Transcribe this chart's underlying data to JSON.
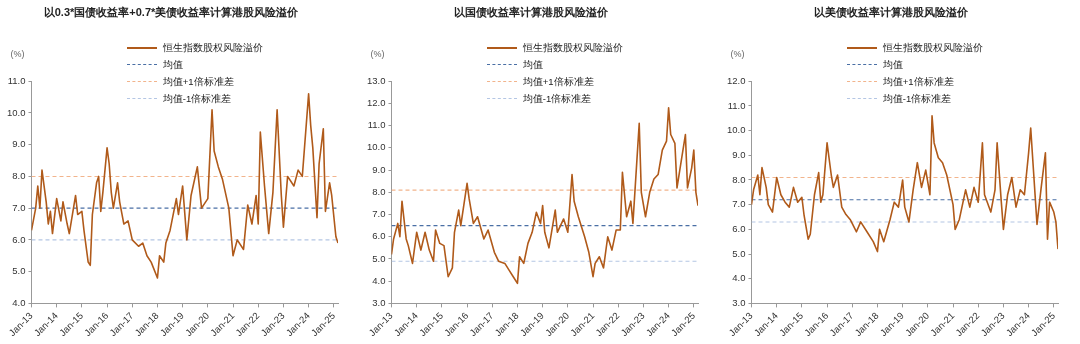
{
  "chart_data": [
    {
      "type": "line",
      "title": "以0.3*国债收益率+0.7*美债收益率计算港股风险溢价",
      "ylabel": "(%)",
      "legend": "top",
      "grid": false,
      "marker": "none",
      "xlim": [
        "2013-01",
        "2025-03"
      ],
      "xticks": [
        {
          "value": "2013-01",
          "label": "Jan-13"
        },
        {
          "value": "2014-01",
          "label": "Jan-14"
        },
        {
          "value": "2015-01",
          "label": "Jan-15"
        },
        {
          "value": "2016-01",
          "label": "Jan-16"
        },
        {
          "value": "2017-01",
          "label": "Jan-17"
        },
        {
          "value": "2018-01",
          "label": "Jan-18"
        },
        {
          "value": "2019-01",
          "label": "Jan-19"
        },
        {
          "value": "2020-01",
          "label": "Jan-20"
        },
        {
          "value": "2021-01",
          "label": "Jan-21"
        },
        {
          "value": "2022-01",
          "label": "Jan-22"
        },
        {
          "value": "2023-01",
          "label": "Jan-23"
        },
        {
          "value": "2024-01",
          "label": "Jan-24"
        },
        {
          "value": "2025-01",
          "label": "Jan-25"
        }
      ],
      "ylim": [
        4,
        11
      ],
      "yticks": [
        {
          "value": 4,
          "label": "4.0"
        },
        {
          "value": 5,
          "label": "5.0"
        },
        {
          "value": 6,
          "label": "6.0"
        },
        {
          "value": 7,
          "label": "7.0"
        },
        {
          "value": 8,
          "label": "8.0"
        },
        {
          "value": 9,
          "label": "9.0"
        },
        {
          "value": 10,
          "label": "10.0"
        },
        {
          "value": 11,
          "label": "11.0"
        }
      ],
      "ref_lines": [
        {
          "axis": "y",
          "value": 7.0,
          "label": "均值",
          "color": "#4a6fa5",
          "line_style": "dashed"
        },
        {
          "axis": "y",
          "value": 8.0,
          "label": "均值+1倍标准差",
          "color": "#f2b48c",
          "line_style": "dashed"
        },
        {
          "axis": "y",
          "value": 6.0,
          "label": "均值-1倍标准差",
          "color": "#b4c6e4",
          "line_style": "dashed"
        }
      ],
      "series": [
        {
          "name": "恒生指数股权风险溢价",
          "color": "#b05a1a",
          "x": [
            "2013-01",
            "2013-03",
            "2013-04",
            "2013-05",
            "2013-06",
            "2013-08",
            "2013-09",
            "2013-10",
            "2013-11",
            "2014-01",
            "2014-03",
            "2014-04",
            "2014-06",
            "2014-07",
            "2014-10",
            "2014-11",
            "2015-01",
            "2015-02",
            "2015-04",
            "2015-05",
            "2015-06",
            "2015-08",
            "2015-09",
            "2015-10",
            "2015-11",
            "2016-01",
            "2016-02",
            "2016-03",
            "2016-04",
            "2016-06",
            "2016-07",
            "2016-09",
            "2016-11",
            "2017-01",
            "2017-04",
            "2017-06",
            "2017-08",
            "2017-10",
            "2018-01",
            "2018-02",
            "2018-04",
            "2018-05",
            "2018-07",
            "2018-10",
            "2018-11",
            "2019-01",
            "2019-03",
            "2019-05",
            "2019-08",
            "2019-10",
            "2020-01",
            "2020-03",
            "2020-04",
            "2020-06",
            "2020-08",
            "2020-11",
            "2021-01",
            "2021-03",
            "2021-06",
            "2021-08",
            "2021-10",
            "2021-12",
            "2022-01",
            "2022-02",
            "2022-04",
            "2022-06",
            "2022-08",
            "2022-10",
            "2022-12",
            "2023-01",
            "2023-03",
            "2023-06",
            "2023-08",
            "2023-10",
            "2024-01",
            "2024-02",
            "2024-03",
            "2024-05",
            "2024-06",
            "2024-08",
            "2024-09",
            "2024-11",
            "2024-12",
            "2025-02",
            "2025-03"
          ],
          "values": [
            6.3,
            7.0,
            7.7,
            7.0,
            8.2,
            7.2,
            6.5,
            6.9,
            6.2,
            7.3,
            6.6,
            7.2,
            6.5,
            6.2,
            7.4,
            6.8,
            6.9,
            6.3,
            5.3,
            5.2,
            6.8,
            7.8,
            8.0,
            6.9,
            7.5,
            8.9,
            8.4,
            7.5,
            7.0,
            7.8,
            7.2,
            6.5,
            6.6,
            6.0,
            5.8,
            5.9,
            5.5,
            5.3,
            4.8,
            5.5,
            5.3,
            5.9,
            6.3,
            7.3,
            6.8,
            7.7,
            6.0,
            7.4,
            8.3,
            7.0,
            7.3,
            10.1,
            8.8,
            8.3,
            7.9,
            7.0,
            5.5,
            6.0,
            5.7,
            7.1,
            6.5,
            7.4,
            6.5,
            9.4,
            7.7,
            6.2,
            7.5,
            10.1,
            7.4,
            6.4,
            8.0,
            7.7,
            8.2,
            8.0,
            10.6,
            9.6,
            8.9,
            6.7,
            8.4,
            9.5,
            6.9,
            7.8,
            7.4,
            6.1,
            5.9
          ]
        }
      ]
    },
    {
      "type": "line",
      "title": "以国债收益率计算港股风险溢价",
      "ylabel": "(%)",
      "legend": "top",
      "grid": false,
      "marker": "none",
      "xlim": [
        "2013-01",
        "2025-03"
      ],
      "xticks": [
        {
          "value": "2013-01",
          "label": "Jan-13"
        },
        {
          "value": "2014-01",
          "label": "Jan-14"
        },
        {
          "value": "2015-01",
          "label": "Jan-15"
        },
        {
          "value": "2016-01",
          "label": "Jan-16"
        },
        {
          "value": "2017-01",
          "label": "Jan-17"
        },
        {
          "value": "2018-01",
          "label": "Jan-18"
        },
        {
          "value": "2019-01",
          "label": "Jan-19"
        },
        {
          "value": "2020-01",
          "label": "Jan-20"
        },
        {
          "value": "2021-01",
          "label": "Jan-21"
        },
        {
          "value": "2022-01",
          "label": "Jan-22"
        },
        {
          "value": "2023-01",
          "label": "Jan-23"
        },
        {
          "value": "2024-01",
          "label": "Jan-24"
        },
        {
          "value": "2025-01",
          "label": "Jan-25"
        }
      ],
      "ylim": [
        3,
        13
      ],
      "yticks": [
        {
          "value": 3,
          "label": "3.0"
        },
        {
          "value": 4,
          "label": "4.0"
        },
        {
          "value": 5,
          "label": "5.0"
        },
        {
          "value": 6,
          "label": "6.0"
        },
        {
          "value": 7,
          "label": "7.0"
        },
        {
          "value": 8,
          "label": "8.0"
        },
        {
          "value": 9,
          "label": "9.0"
        },
        {
          "value": 10,
          "label": "10.0"
        },
        {
          "value": 11,
          "label": "11.0"
        },
        {
          "value": 12,
          "label": "12.0"
        },
        {
          "value": 13,
          "label": "13.0"
        }
      ],
      "ref_lines": [
        {
          "axis": "y",
          "value": 6.5,
          "label": "均值",
          "color": "#4a6fa5",
          "line_style": "dashed"
        },
        {
          "axis": "y",
          "value": 8.1,
          "label": "均值+1倍标准差",
          "color": "#f2b48c",
          "line_style": "dashed"
        },
        {
          "axis": "y",
          "value": 4.9,
          "label": "均值-1倍标准差",
          "color": "#b4c6e4",
          "line_style": "dashed"
        }
      ],
      "series": [
        {
          "name": "恒生指数股权风险溢价",
          "color": "#b05a1a",
          "x": [
            "2013-01",
            "2013-02",
            "2013-04",
            "2013-05",
            "2013-06",
            "2013-08",
            "2013-09",
            "2013-11",
            "2014-01",
            "2014-03",
            "2014-05",
            "2014-07",
            "2014-09",
            "2014-10",
            "2014-12",
            "2015-02",
            "2015-04",
            "2015-06",
            "2015-07",
            "2015-09",
            "2015-10",
            "2016-01",
            "2016-02",
            "2016-04",
            "2016-06",
            "2016-09",
            "2016-11",
            "2017-02",
            "2017-04",
            "2017-07",
            "2017-09",
            "2017-11",
            "2018-01",
            "2018-02",
            "2018-04",
            "2018-06",
            "2018-08",
            "2018-10",
            "2018-12",
            "2019-01",
            "2019-02",
            "2019-04",
            "2019-07",
            "2019-08",
            "2019-11",
            "2020-01",
            "2020-03",
            "2020-04",
            "2020-06",
            "2020-09",
            "2020-11",
            "2021-01",
            "2021-02",
            "2021-04",
            "2021-06",
            "2021-08",
            "2021-10",
            "2021-12",
            "2022-02",
            "2022-03",
            "2022-05",
            "2022-07",
            "2022-08",
            "2022-11",
            "2022-12",
            "2023-02",
            "2023-04",
            "2023-06",
            "2023-08",
            "2023-10",
            "2023-12",
            "2024-01",
            "2024-02",
            "2024-04",
            "2024-05",
            "2024-07",
            "2024-09",
            "2024-10",
            "2024-12",
            "2025-01",
            "2025-02",
            "2025-03"
          ],
          "values": [
            5.2,
            5.9,
            6.6,
            6.0,
            7.6,
            5.9,
            5.6,
            4.8,
            6.2,
            5.4,
            6.2,
            5.4,
            4.9,
            6.3,
            5.7,
            5.6,
            4.2,
            4.6,
            6.2,
            7.2,
            6.5,
            8.4,
            7.7,
            6.6,
            6.9,
            5.9,
            6.3,
            5.3,
            4.9,
            4.8,
            4.5,
            4.2,
            3.9,
            5.1,
            4.8,
            5.7,
            6.2,
            7.1,
            6.6,
            7.4,
            6.2,
            5.5,
            7.2,
            6.2,
            6.8,
            6.2,
            8.8,
            7.6,
            6.9,
            6.0,
            5.3,
            4.2,
            4.8,
            5.1,
            4.6,
            6.0,
            5.4,
            6.3,
            6.3,
            8.9,
            6.9,
            7.6,
            6.6,
            11.1,
            8.0,
            6.9,
            8.0,
            8.6,
            8.8,
            9.9,
            10.3,
            11.8,
            10.6,
            10.2,
            8.2,
            9.4,
            10.6,
            8.2,
            9.1,
            9.9,
            8.0,
            7.4
          ]
        }
      ]
    },
    {
      "type": "line",
      "title": "以美债收益率计算港股风险溢价",
      "ylabel": "(%)",
      "legend": "top",
      "grid": false,
      "marker": "none",
      "xlim": [
        "2013-01",
        "2025-03"
      ],
      "xticks": [
        {
          "value": "2013-01",
          "label": "Jan-13"
        },
        {
          "value": "2014-01",
          "label": "Jan-14"
        },
        {
          "value": "2015-01",
          "label": "Jan-15"
        },
        {
          "value": "2016-01",
          "label": "Jan-16"
        },
        {
          "value": "2017-01",
          "label": "Jan-17"
        },
        {
          "value": "2018-01",
          "label": "Jan-18"
        },
        {
          "value": "2019-01",
          "label": "Jan-19"
        },
        {
          "value": "2020-01",
          "label": "Jan-20"
        },
        {
          "value": "2021-01",
          "label": "Jan-21"
        },
        {
          "value": "2022-01",
          "label": "Jan-22"
        },
        {
          "value": "2023-01",
          "label": "Jan-23"
        },
        {
          "value": "2024-01",
          "label": "Jan-24"
        },
        {
          "value": "2025-01",
          "label": "Jan-25"
        }
      ],
      "ylim": [
        3,
        12
      ],
      "yticks": [
        {
          "value": 3,
          "label": "3.0"
        },
        {
          "value": 4,
          "label": "4.0"
        },
        {
          "value": 5,
          "label": "5.0"
        },
        {
          "value": 6,
          "label": "6.0"
        },
        {
          "value": 7,
          "label": "7.0"
        },
        {
          "value": 8,
          "label": "8.0"
        },
        {
          "value": 9,
          "label": "9.0"
        },
        {
          "value": 10,
          "label": "10.0"
        },
        {
          "value": 11,
          "label": "11.0"
        },
        {
          "value": 12,
          "label": "12.0"
        }
      ],
      "ref_lines": [
        {
          "axis": "y",
          "value": 7.2,
          "label": "均值",
          "color": "#4a6fa5",
          "line_style": "dashed"
        },
        {
          "axis": "y",
          "value": 8.1,
          "label": "均值+1倍标准差",
          "color": "#f2b48c",
          "line_style": "dashed"
        },
        {
          "axis": "y",
          "value": 6.3,
          "label": "均值-1倍标准差",
          "color": "#b4c6e4",
          "line_style": "dashed"
        }
      ],
      "series": [
        {
          "name": "恒生指数股权风险溢价",
          "color": "#b05a1a",
          "x": [
            "2013-01",
            "2013-02",
            "2013-04",
            "2013-05",
            "2013-06",
            "2013-08",
            "2013-09",
            "2013-11",
            "2014-01",
            "2014-03",
            "2014-05",
            "2014-07",
            "2014-09",
            "2014-11",
            "2015-01",
            "2015-02",
            "2015-04",
            "2015-05",
            "2015-07",
            "2015-09",
            "2015-10",
            "2015-11",
            "2016-01",
            "2016-03",
            "2016-04",
            "2016-06",
            "2016-08",
            "2016-10",
            "2016-12",
            "2017-03",
            "2017-05",
            "2017-08",
            "2017-11",
            "2018-01",
            "2018-02",
            "2018-04",
            "2018-07",
            "2018-09",
            "2018-11",
            "2019-01",
            "2019-02",
            "2019-04",
            "2019-06",
            "2019-08",
            "2019-10",
            "2019-12",
            "2020-02",
            "2020-03",
            "2020-04",
            "2020-06",
            "2020-08",
            "2020-10",
            "2021-01",
            "2021-02",
            "2021-04",
            "2021-07",
            "2021-09",
            "2021-11",
            "2022-01",
            "2022-03",
            "2022-04",
            "2022-07",
            "2022-09",
            "2022-10",
            "2022-12",
            "2023-01",
            "2023-03",
            "2023-05",
            "2023-07",
            "2023-09",
            "2023-11",
            "2024-01",
            "2024-02",
            "2024-03",
            "2024-05",
            "2024-07",
            "2024-09",
            "2024-10",
            "2024-11",
            "2025-01",
            "2025-02",
            "2025-03"
          ],
          "values": [
            7.0,
            7.6,
            8.2,
            7.4,
            8.5,
            7.7,
            7.0,
            6.7,
            8.1,
            7.4,
            7.1,
            6.9,
            7.7,
            7.1,
            7.3,
            6.6,
            5.6,
            5.8,
            7.4,
            8.3,
            7.1,
            7.4,
            9.5,
            8.2,
            7.7,
            8.2,
            6.9,
            6.6,
            6.4,
            5.9,
            6.3,
            5.9,
            5.5,
            5.1,
            6.0,
            5.5,
            6.4,
            7.1,
            6.9,
            8.0,
            6.9,
            6.3,
            7.6,
            8.7,
            7.7,
            8.4,
            7.4,
            10.6,
            9.5,
            8.9,
            8.7,
            8.2,
            7.0,
            6.0,
            6.4,
            7.6,
            6.9,
            7.7,
            7.1,
            9.5,
            7.4,
            6.7,
            7.6,
            9.5,
            7.1,
            6.0,
            7.4,
            8.1,
            6.9,
            7.6,
            7.4,
            9.1,
            10.1,
            8.8,
            6.2,
            7.7,
            9.1,
            5.6,
            7.1,
            6.7,
            6.3,
            5.2
          ]
        }
      ]
    }
  ]
}
